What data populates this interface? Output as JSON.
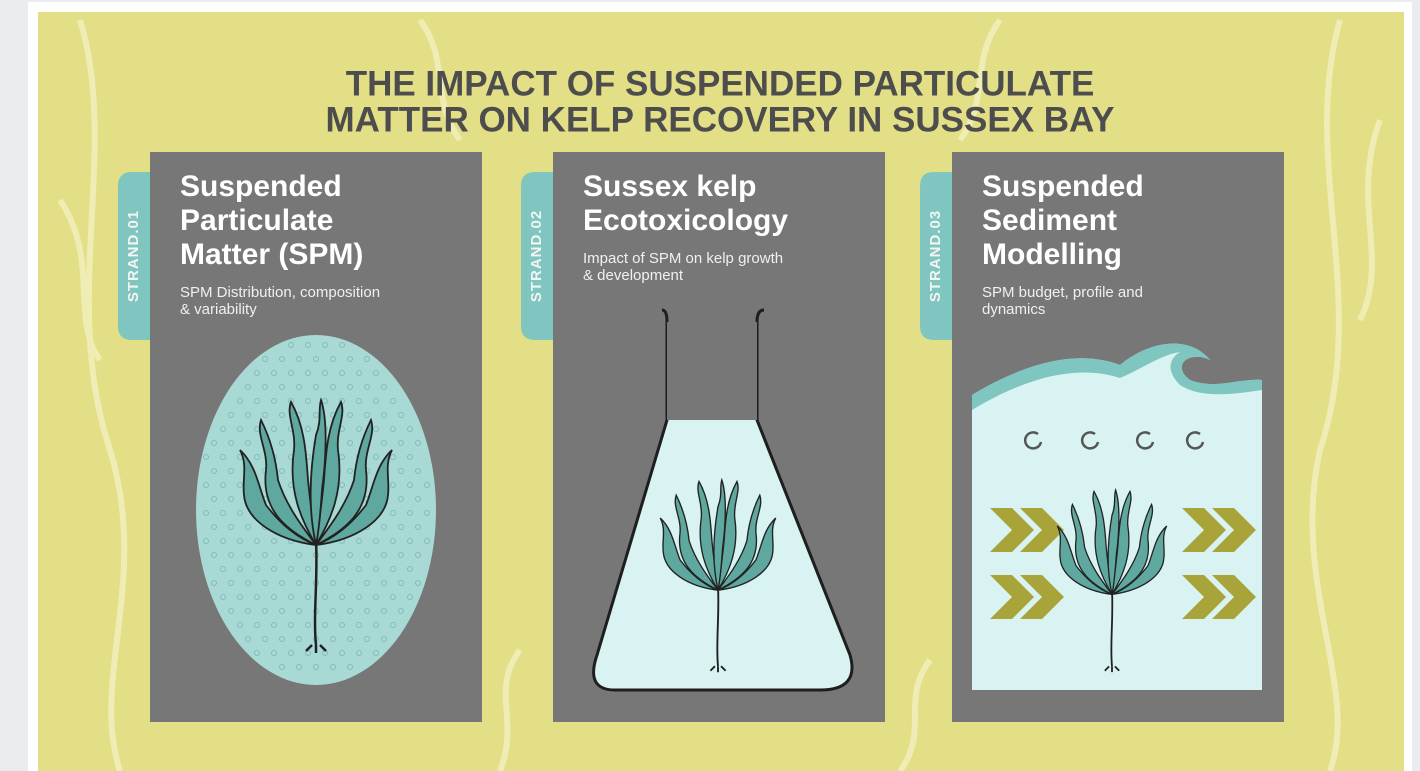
{
  "title_lines": [
    "THE IMPACT OF SUSPENDED PARTICULATE",
    "MATTER ON KELP RECOVERY IN SUSSEX BAY"
  ],
  "cards": [
    {
      "strand": "STRAND.01",
      "heading_lines": [
        "Suspended",
        "Particulate",
        "Matter (SPM)"
      ],
      "subtitle_lines": [
        "SPM Distribution, composition",
        "& variability"
      ]
    },
    {
      "strand": "STRAND.02",
      "heading_lines": [
        "Sussex kelp",
        "Ecotoxicology"
      ],
      "subtitle_lines": [
        "Impact of SPM on kelp growth",
        "& development"
      ]
    },
    {
      "strand": "STRAND.03",
      "heading_lines": [
        "Suspended",
        "Sediment",
        "Modelling"
      ],
      "subtitle_lines": [
        "SPM budget, profile and",
        "dynamics"
      ]
    }
  ]
}
